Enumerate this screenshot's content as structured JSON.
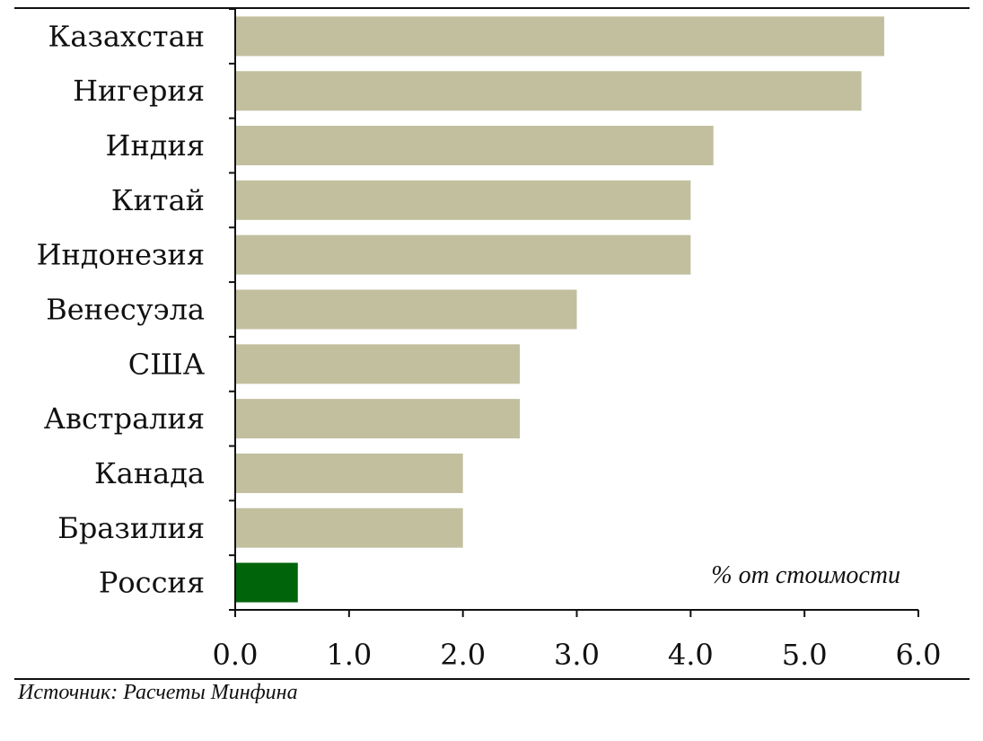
{
  "chart_data": {
    "type": "bar",
    "orientation": "horizontal",
    "categories": [
      "Казахстан",
      "Нигерия",
      "Индия",
      "Китай",
      "Индонезия",
      "Венесуэла",
      "США",
      "Австралия",
      "Канада",
      "Бразилия",
      "Россия"
    ],
    "values": [
      5.7,
      5.5,
      4.2,
      4.0,
      4.0,
      3.0,
      2.5,
      2.5,
      2.0,
      2.0,
      0.55
    ],
    "xlim": [
      0,
      6
    ],
    "xticks": [
      "0.0",
      "1.0",
      "2.0",
      "3.0",
      "4.0",
      "5.0",
      "6.0"
    ],
    "annotation": "% от стоимости",
    "grid": false,
    "colors": {
      "default": "#c2bf9f",
      "highlight": "#00640a"
    },
    "highlight_category": "Россия"
  },
  "source_note": "Источник: Расчеты Минфина"
}
